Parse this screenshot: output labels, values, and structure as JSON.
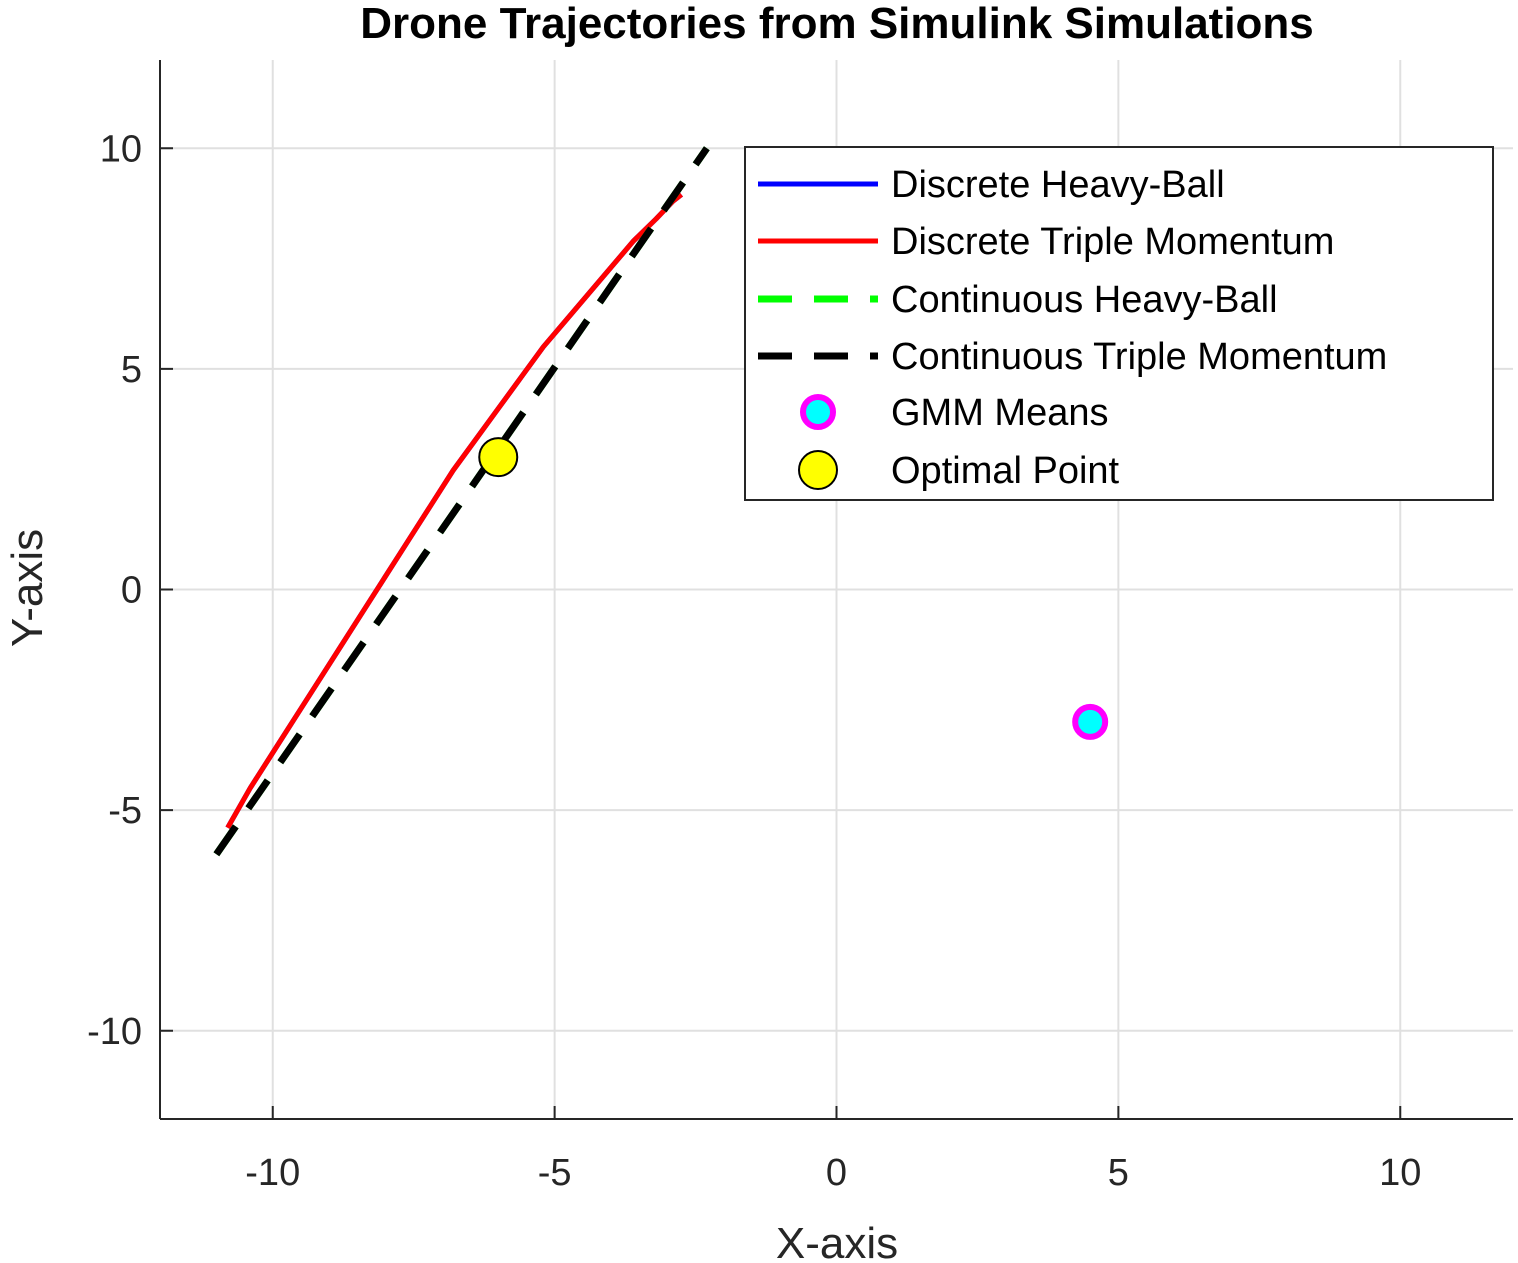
{
  "chart_data": {
    "type": "line",
    "title": "Drone Trajectories from Simulink Simulations",
    "xlabel": "X-axis",
    "ylabel": "Y-axis",
    "xlim": [
      -12,
      12
    ],
    "ylim": [
      -12,
      12
    ],
    "xticks": [
      -10,
      -5,
      0,
      5,
      10
    ],
    "yticks": [
      -10,
      -5,
      0,
      5,
      10
    ],
    "xtick_labels": [
      "-10",
      "-5",
      "0",
      "5",
      "10"
    ],
    "ytick_labels": [
      "-10",
      "-5",
      "0",
      "5",
      "10"
    ],
    "grid": true,
    "legend_position": "top-right",
    "series": [
      {
        "name": "Discrete Heavy-Ball",
        "style": "solid",
        "color": "#0000ff",
        "points": [
          [
            -10.8,
            -5.4
          ],
          [
            -10.4,
            -4.5
          ],
          [
            -10.0,
            -3.7
          ],
          [
            -9.6,
            -2.9
          ],
          [
            -9.2,
            -2.1
          ],
          [
            -8.8,
            -1.3
          ],
          [
            -8.4,
            -0.5
          ],
          [
            -8.0,
            0.3
          ],
          [
            -7.6,
            1.1
          ],
          [
            -7.2,
            1.9
          ],
          [
            -6.8,
            2.7
          ],
          [
            -6.4,
            3.4
          ],
          [
            -6.0,
            4.1
          ],
          [
            -5.6,
            4.8
          ],
          [
            -5.2,
            5.5
          ],
          [
            -4.8,
            6.1
          ],
          [
            -4.4,
            6.7
          ],
          [
            -4.0,
            7.3
          ],
          [
            -3.6,
            7.9
          ],
          [
            -3.2,
            8.4
          ],
          [
            -2.9,
            8.8
          ],
          [
            -2.75,
            8.95
          ]
        ]
      },
      {
        "name": "Discrete Triple Momentum",
        "style": "solid",
        "color": "#ff0000",
        "points": [
          [
            -10.8,
            -5.4
          ],
          [
            -10.4,
            -4.5
          ],
          [
            -10.0,
            -3.7
          ],
          [
            -9.6,
            -2.9
          ],
          [
            -9.2,
            -2.1
          ],
          [
            -8.8,
            -1.3
          ],
          [
            -8.4,
            -0.5
          ],
          [
            -8.0,
            0.3
          ],
          [
            -7.6,
            1.1
          ],
          [
            -7.2,
            1.9
          ],
          [
            -6.8,
            2.7
          ],
          [
            -6.4,
            3.4
          ],
          [
            -6.0,
            4.1
          ],
          [
            -5.6,
            4.8
          ],
          [
            -5.2,
            5.5
          ],
          [
            -4.8,
            6.1
          ],
          [
            -4.4,
            6.7
          ],
          [
            -4.0,
            7.3
          ],
          [
            -3.6,
            7.9
          ],
          [
            -3.2,
            8.4
          ],
          [
            -2.9,
            8.8
          ],
          [
            -2.75,
            8.95
          ]
        ]
      },
      {
        "name": "Continuous Heavy-Ball",
        "style": "dashed",
        "color": "#00ff00",
        "points": [
          [
            -11.0,
            -6.0
          ],
          [
            -2.3,
            10.0
          ]
        ]
      },
      {
        "name": "Continuous Triple Momentum",
        "style": "dashed",
        "color": "#000000",
        "points": [
          [
            -11.0,
            -6.0
          ],
          [
            -2.3,
            10.0
          ]
        ]
      }
    ],
    "markers": [
      {
        "name": "GMM Means",
        "face_color": "#00ffff",
        "edge_color": "#ff00ff",
        "points": [
          [
            4.5,
            -3.0
          ]
        ]
      },
      {
        "name": "Optimal Point",
        "face_color": "#ffff00",
        "edge_color": "#000000",
        "points": [
          [
            -6.0,
            3.0
          ]
        ]
      }
    ]
  }
}
